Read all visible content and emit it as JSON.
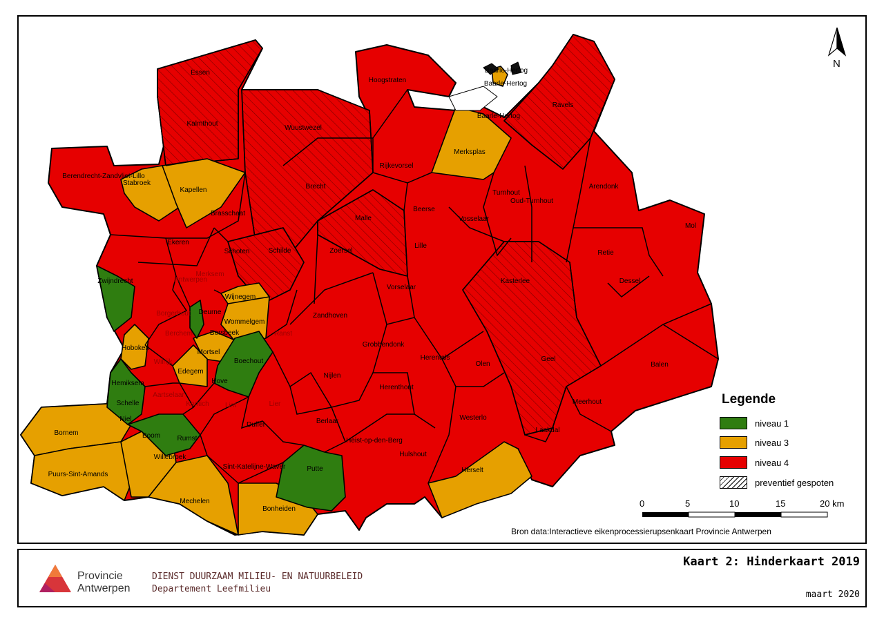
{
  "colors": {
    "niveau_1": "#2f7d10",
    "niveau_3": "#e6a000",
    "niveau_4": "#e60000",
    "border": "#000000"
  },
  "municipalities": [
    {
      "name": "Essen",
      "niveau": 4,
      "preventief": true
    },
    {
      "name": "Kalmthout",
      "niveau": 4,
      "preventief": true
    },
    {
      "name": "Wuustwezel",
      "niveau": 4,
      "preventief": true
    },
    {
      "name": "Hoogstraten",
      "niveau": 4,
      "preventief": false
    },
    {
      "name": "Baarle-Hertog",
      "niveau": 3,
      "preventief": false
    },
    {
      "name": "Baarle-Hertog",
      "niveau": 3,
      "preventief": false
    },
    {
      "name": "Baarle-Hertog",
      "niveau": 3,
      "preventief": false
    },
    {
      "name": "Ravels",
      "niveau": 4,
      "preventief": true
    },
    {
      "name": "Berendrecht-Zandvliet-Lillo",
      "niveau": 4,
      "preventief": false
    },
    {
      "name": "Stabroek",
      "niveau": 3,
      "preventief": false
    },
    {
      "name": "Kapellen",
      "niveau": 3,
      "preventief": false
    },
    {
      "name": "Brecht",
      "niveau": 4,
      "preventief": true
    },
    {
      "name": "Rijkevorsel",
      "niveau": 4,
      "preventief": false
    },
    {
      "name": "Merksplas",
      "niveau": 3,
      "preventief": false
    },
    {
      "name": "Turnhout",
      "niveau": 4,
      "preventief": false
    },
    {
      "name": "Oud-Turnhout",
      "niveau": 4,
      "preventief": false
    },
    {
      "name": "Arendonk",
      "niveau": 4,
      "preventief": false
    },
    {
      "name": "Brasschaat",
      "niveau": 4,
      "preventief": false
    },
    {
      "name": "Malle",
      "niveau": 4,
      "preventief": true
    },
    {
      "name": "Beerse",
      "niveau": 4,
      "preventief": false
    },
    {
      "name": "Vosselaar",
      "niveau": 4,
      "preventief": false
    },
    {
      "name": "Mol",
      "niveau": 4,
      "preventief": false
    },
    {
      "name": "Ekeren",
      "niveau": 4,
      "preventief": false
    },
    {
      "name": "Schoten",
      "niveau": 4,
      "preventief": true
    },
    {
      "name": "Schilde",
      "niveau": 4,
      "preventief": true
    },
    {
      "name": "Zoersel",
      "niveau": 4,
      "preventief": false
    },
    {
      "name": "Lille",
      "niveau": 4,
      "preventief": false
    },
    {
      "name": "Retie",
      "niveau": 4,
      "preventief": false
    },
    {
      "name": "Antwerpen",
      "niveau": 4,
      "preventief": false
    },
    {
      "name": "Merksem",
      "niveau": 4,
      "preventief": false
    },
    {
      "name": "Kasterlee",
      "niveau": 4,
      "preventief": true
    },
    {
      "name": "Dessel",
      "niveau": 4,
      "preventief": false
    },
    {
      "name": "Zwijndrecht",
      "niveau": 1,
      "preventief": false
    },
    {
      "name": "Wijnegem",
      "niveau": 3,
      "preventief": false
    },
    {
      "name": "Vorselaar",
      "niveau": 4,
      "preventief": false
    },
    {
      "name": "Borgerhout",
      "niveau": 4,
      "preventief": false
    },
    {
      "name": "Deurne",
      "niveau": 1,
      "preventief": false
    },
    {
      "name": "Zandhoven",
      "niveau": 4,
      "preventief": false
    },
    {
      "name": "Wommelgem",
      "niveau": 3,
      "preventief": false
    },
    {
      "name": "Berchem",
      "niveau": 4,
      "preventief": false
    },
    {
      "name": "Borsbeek",
      "niveau": 3,
      "preventief": false
    },
    {
      "name": "Ranst",
      "niveau": 4,
      "preventief": false
    },
    {
      "name": "Grobbendonk",
      "niveau": 4,
      "preventief": false
    },
    {
      "name": "Hoboken",
      "niveau": 3,
      "preventief": false
    },
    {
      "name": "Mortsel",
      "niveau": 3,
      "preventief": false
    },
    {
      "name": "Boechout",
      "niveau": 1,
      "preventief": false
    },
    {
      "name": "Herentals",
      "niveau": 4,
      "preventief": false
    },
    {
      "name": "Olen",
      "niveau": 4,
      "preventief": false
    },
    {
      "name": "Geel",
      "niveau": 4,
      "preventief": true
    },
    {
      "name": "Balen",
      "niveau": 4,
      "preventief": false
    },
    {
      "name": "Wilrijk",
      "niveau": 4,
      "preventief": false
    },
    {
      "name": "Edegem",
      "niveau": 3,
      "preventief": false
    },
    {
      "name": "Nijlen",
      "niveau": 4,
      "preventief": false
    },
    {
      "name": "Hemiksem",
      "niveau": 1,
      "preventief": false
    },
    {
      "name": "Hove",
      "niveau": 1,
      "preventief": false
    },
    {
      "name": "Herenthout",
      "niveau": 4,
      "preventief": false
    },
    {
      "name": "Aartselaar",
      "niveau": 4,
      "preventief": false
    },
    {
      "name": "Schelle",
      "niveau": 1,
      "preventief": false
    },
    {
      "name": "Kontich",
      "niveau": 4,
      "preventief": false
    },
    {
      "name": "Lint",
      "niveau": 4,
      "preventief": false
    },
    {
      "name": "Lier",
      "niveau": 4,
      "preventief": false
    },
    {
      "name": "Meerhout",
      "niveau": 4,
      "preventief": false
    },
    {
      "name": "Niel",
      "niveau": 1,
      "preventief": false
    },
    {
      "name": "Berlaar",
      "niveau": 4,
      "preventief": false
    },
    {
      "name": "Westerlo",
      "niveau": 4,
      "preventief": false
    },
    {
      "name": "Bornem",
      "niveau": 3,
      "preventief": false
    },
    {
      "name": "Boom",
      "niveau": 1,
      "preventief": false
    },
    {
      "name": "Rumst",
      "niveau": 1,
      "preventief": false
    },
    {
      "name": "Duffel",
      "niveau": 4,
      "preventief": false
    },
    {
      "name": "Heist-op-den-Berg",
      "niveau": 4,
      "preventief": false
    },
    {
      "name": "Laakdal",
      "niveau": 4,
      "preventief": false
    },
    {
      "name": "Willebroek",
      "niveau": 3,
      "preventief": false
    },
    {
      "name": "Hulshout",
      "niveau": 4,
      "preventief": false
    },
    {
      "name": "Sint-Katelijne-Waver",
      "niveau": 4,
      "preventief": false
    },
    {
      "name": "Putte",
      "niveau": 1,
      "preventief": false
    },
    {
      "name": "Herselt",
      "niveau": 3,
      "preventief": false
    },
    {
      "name": "Puurs-Sint-Amands",
      "niveau": 3,
      "preventief": false
    },
    {
      "name": "Mechelen",
      "niveau": 3,
      "preventief": false
    },
    {
      "name": "Bonheiden",
      "niveau": 4,
      "preventief": false
    }
  ],
  "north_label": "N",
  "legend": {
    "title": "Legende",
    "items": [
      {
        "label": "niveau 1",
        "color": "#2f7d10"
      },
      {
        "label": "niveau 3",
        "color": "#e6a000"
      },
      {
        "label": "niveau 4",
        "color": "#e60000"
      },
      {
        "label": "preventief gespoten",
        "pattern": "hatch"
      }
    ]
  },
  "scale_bar": {
    "ticks": [
      "0",
      "5",
      "10",
      "15",
      "20 km"
    ]
  },
  "source": "Bron data:Interactieve eikenprocessierupsenkaart Provincie Antwerpen",
  "footer": {
    "logo_line1": "Provincie",
    "logo_line2": "Antwerpen",
    "dienst": "DIENST DUURZAAM MILIEU- EN NATUURBELEID",
    "departement": "Departement Leefmilieu",
    "title": "Kaart 2: Hinderkaart 2019",
    "date": "maart 2020"
  }
}
